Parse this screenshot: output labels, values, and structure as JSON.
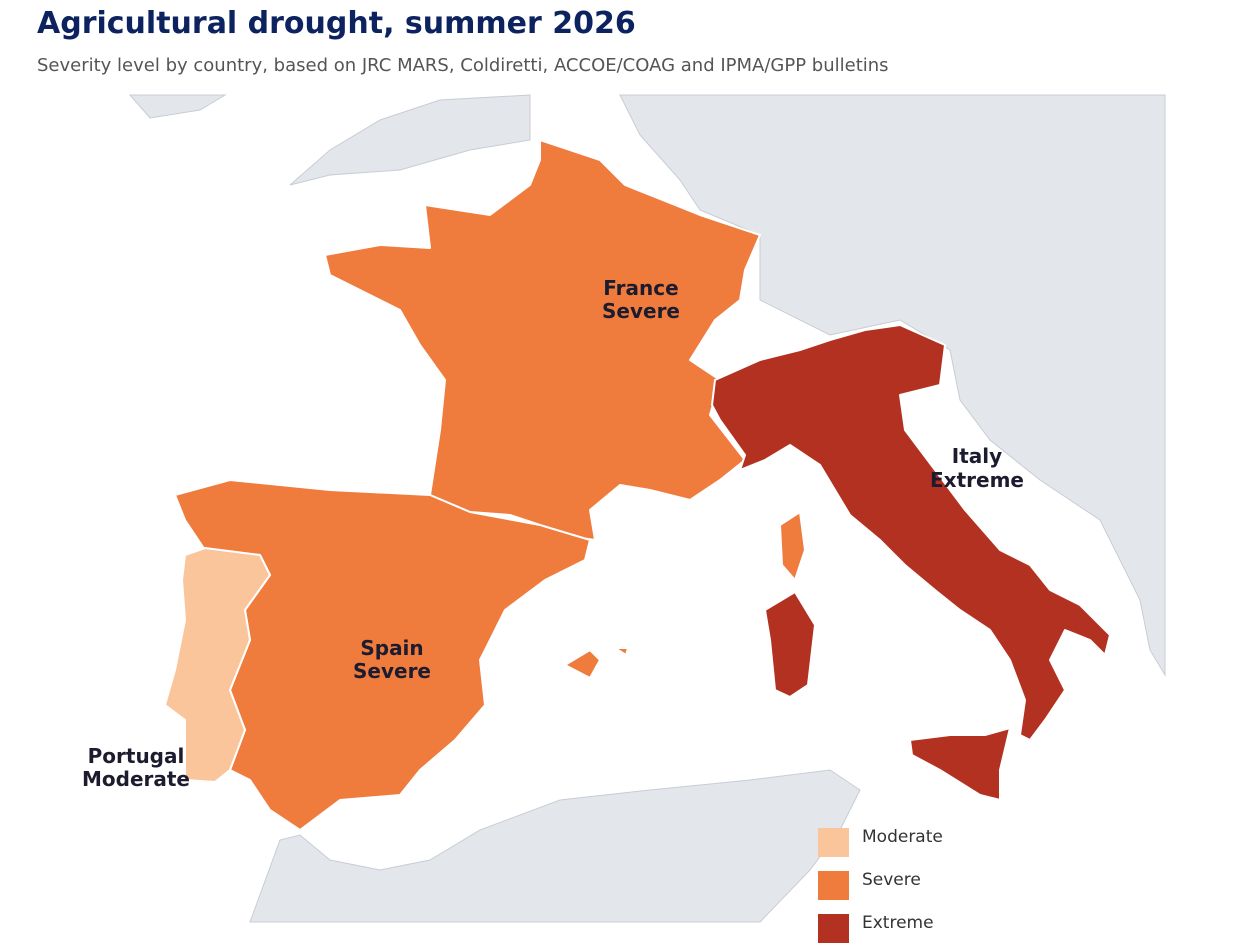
{
  "title": "Agricultural drought, summer 2026",
  "subtitle": "Severity level by country, based on JRC MARS, Coldiretti, ACCOE/COAG and IPMA/GPP bulletins",
  "legend": [
    {
      "label": "Moderate",
      "color": "#fbc59c"
    },
    {
      "label": "Severe",
      "color": "#ef7b3d"
    },
    {
      "label": "Extreme",
      "color": "#b33120"
    }
  ],
  "regions": [
    {
      "name": "France",
      "severity": "Severe"
    },
    {
      "name": "Italy",
      "severity": "Extreme"
    },
    {
      "name": "Spain",
      "severity": "Severe"
    },
    {
      "name": "Portugal",
      "severity": "Moderate"
    }
  ]
}
